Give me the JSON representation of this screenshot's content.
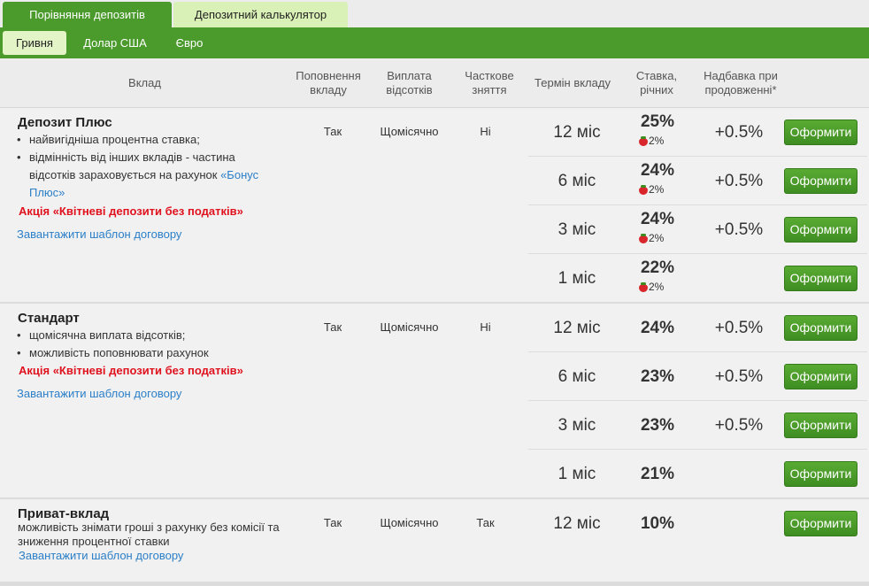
{
  "top_tabs": [
    "Порівняння депозитів",
    "Депозитний калькулятор"
  ],
  "currency_tabs": [
    "Гривня",
    "Долар США",
    "Євро"
  ],
  "header": {
    "deposit": "Вклад",
    "topup": "Поповнення вкладу",
    "payout": "Виплата відсотків",
    "partial": "Часткове зняття",
    "term": "Термін вкладу",
    "rate": "Ставка, річних",
    "extra": "Надбавка при продовженні*"
  },
  "button_label": "Оформити",
  "deposits": [
    {
      "title": "Депозит Плюс",
      "bullet1": "найвигідніша процентна ставка;",
      "bullet2": "відмінність від інших вкладів - частина відсотків зараховується на рахунок ",
      "bonus_link": "«Бонус Плюс»",
      "promo": "Акція «Квітневі депозити без податків»",
      "download": "Завантажити шаблон договору",
      "topup": "Так",
      "payout": "Щомісячно",
      "partial": "Ні",
      "rows": [
        {
          "term": "12 міс",
          "rate": "25%",
          "bonus": "2%",
          "extra": "+0.5%"
        },
        {
          "term": "6 міс",
          "rate": "24%",
          "bonus": "2%",
          "extra": "+0.5%"
        },
        {
          "term": "3 міс",
          "rate": "24%",
          "bonus": "2%",
          "extra": "+0.5%"
        },
        {
          "term": "1 міс",
          "rate": "22%",
          "bonus": "2%",
          "extra": ""
        }
      ]
    },
    {
      "title": "Стандарт",
      "bullet1": "щомісячна виплата відсотків;",
      "bullet2": "можливість поповнювати рахунок",
      "promo": "Акція «Квітневі депозити без податків»",
      "download": "Завантажити шаблон договору",
      "topup": "Так",
      "payout": "Щомісячно",
      "partial": "Ні",
      "rows": [
        {
          "term": "12 міс",
          "rate": "24%",
          "extra": "+0.5%"
        },
        {
          "term": "6 міс",
          "rate": "23%",
          "extra": "+0.5%"
        },
        {
          "term": "3 міс",
          "rate": "23%",
          "extra": "+0.5%"
        },
        {
          "term": "1 міс",
          "rate": "21%",
          "extra": ""
        }
      ]
    },
    {
      "title": "Приват-вклад",
      "desc": "можливість знімати гроші з рахунку без комісії та зниження процентної ставки",
      "download": "Завантажити шаблон договору",
      "topup": "Так",
      "payout": "Щомісячно",
      "partial": "Так",
      "rows": [
        {
          "term": "12 міс",
          "rate": "10%",
          "extra": ""
        }
      ]
    }
  ]
}
